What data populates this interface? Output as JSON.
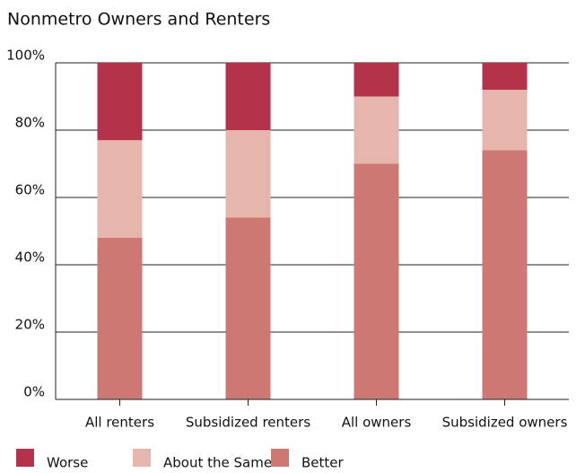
{
  "chart_data": {
    "type": "stacked-bar",
    "subtitle": "Nonmetro Owners and Renters",
    "categories": [
      "All renters",
      "Subsidized renters",
      "All owners",
      "Subsidized owners"
    ],
    "series": [
      {
        "name": "Worse",
        "color": "#b5334a",
        "values": [
          23,
          20,
          10,
          8
        ]
      },
      {
        "name": "About the Same",
        "color": "#e6b5ac",
        "values": [
          29,
          26,
          20,
          18
        ]
      },
      {
        "name": "Better",
        "color": "#cd7872",
        "values": [
          48,
          54,
          70,
          74
        ]
      }
    ],
    "ylim": [
      0,
      100
    ],
    "yticks": [
      {
        "value": 0,
        "label": "0%"
      },
      {
        "value": 20,
        "label": "20%"
      },
      {
        "value": 40,
        "label": "40%"
      },
      {
        "value": 60,
        "label": "60%"
      },
      {
        "value": 80,
        "label": "80%"
      },
      {
        "value": 100,
        "label": "100%"
      }
    ],
    "grid": true
  }
}
